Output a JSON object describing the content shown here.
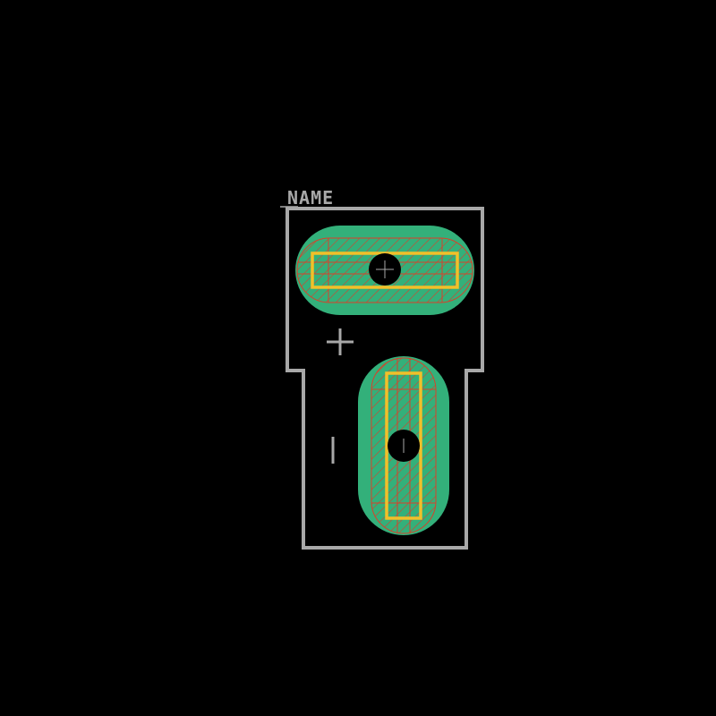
{
  "footprint": {
    "reference_text": "NAME",
    "pin1_marker": "+",
    "pin2_marker": "|",
    "pads": [
      {
        "id": "pad-1",
        "orientation": "horizontal"
      },
      {
        "id": "pad-2",
        "orientation": "vertical"
      }
    ]
  },
  "colors": {
    "background": "#000000",
    "silkscreen": "#a8a8a8",
    "copper": "#33b07a",
    "hatch": "#d8402a",
    "paste_outline": "#f2c029",
    "drill": "#000000"
  },
  "icons": {
    "pin1": "plus-sign",
    "pin2": "vertical-bar"
  }
}
